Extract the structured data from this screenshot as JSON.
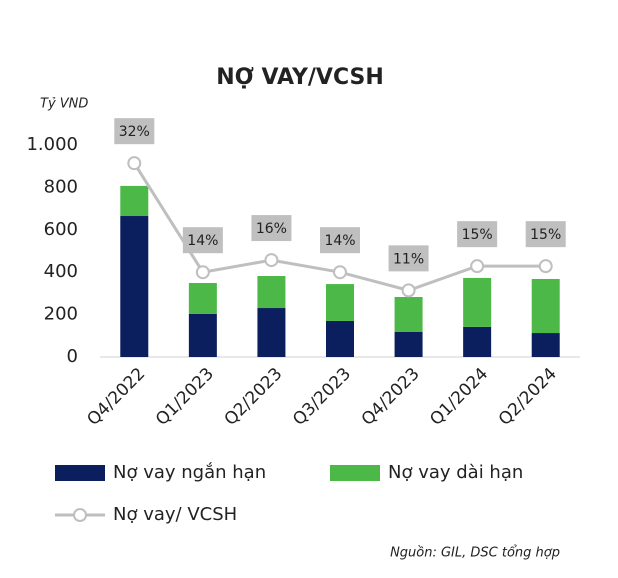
{
  "chart_data": {
    "type": "bar_line",
    "title": "NỢ VAY/VCSH",
    "y_unit": "Tỷ VND",
    "source": "Nguồn: GIL, DSC tổng hợp",
    "categories": [
      "Q4/2022",
      "Q1/2023",
      "Q2/2023",
      "Q3/2023",
      "Q4/2023",
      "Q1/2024",
      "Q2/2024"
    ],
    "series": [
      {
        "name": "Nợ vay ngắn hạn",
        "type": "bar",
        "color": "#0b1f5e",
        "values": [
          665,
          203,
          231,
          170,
          118,
          142,
          113
        ]
      },
      {
        "name": "Nợ vay dài hạn",
        "type": "bar",
        "color": "#4cb848",
        "values": [
          142,
          146,
          151,
          174,
          165,
          231,
          255
        ]
      },
      {
        "name": "Nợ vay/ VCSH",
        "type": "line",
        "axis": "y2",
        "color": "#bfbfbf",
        "values": [
          32,
          14,
          16,
          14,
          11,
          15,
          15
        ],
        "value_labels": [
          "32%",
          "14%",
          "16%",
          "14%",
          "11%",
          "15%",
          "15%"
        ]
      }
    ],
    "ylim": [
      0,
      1000
    ],
    "yticks": [
      0,
      200,
      400,
      600,
      800,
      {
        "value": 1000,
        "label": "1.000"
      }
    ],
    "y2lim": [
      0,
      35
    ],
    "stacked": true
  }
}
